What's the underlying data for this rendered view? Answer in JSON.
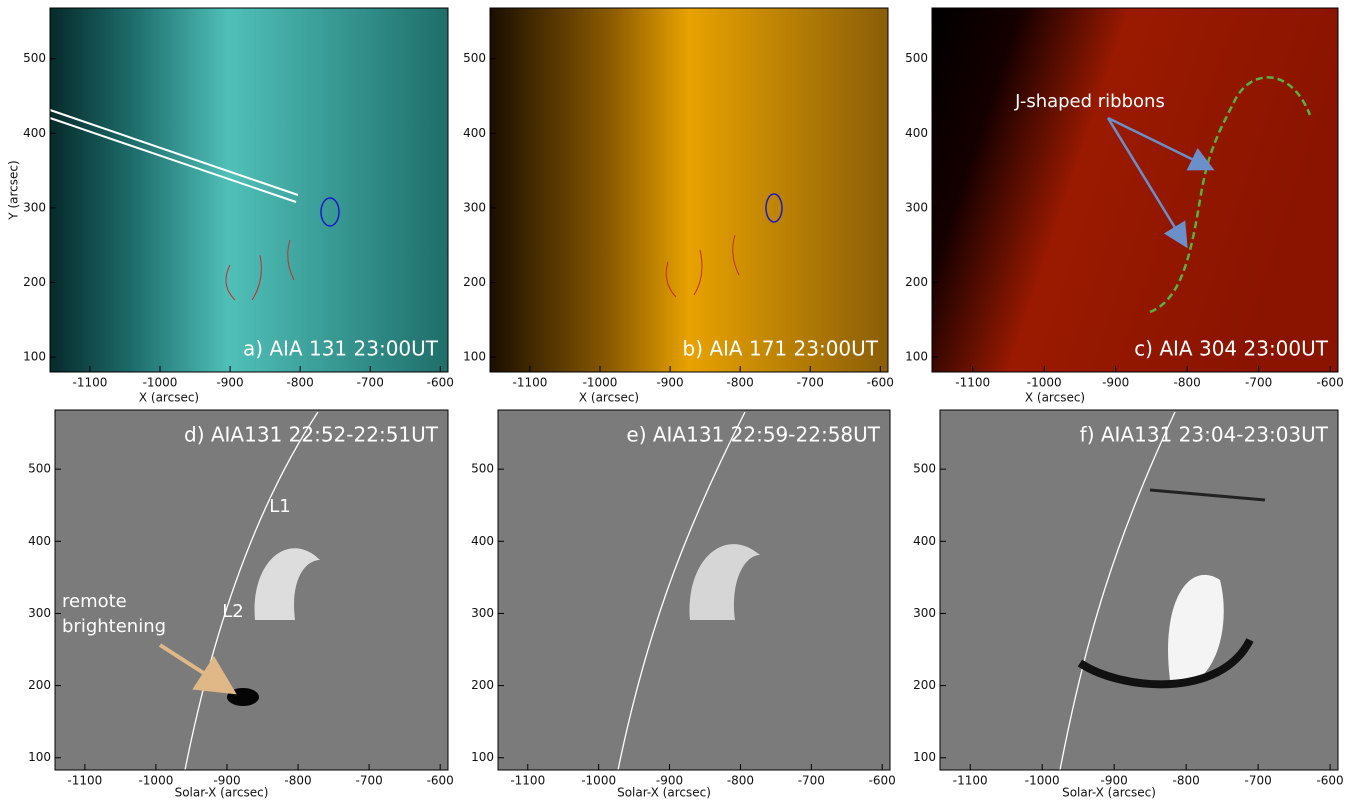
{
  "panels": [
    {
      "label": "a) AIA 131 23:00UT",
      "x_label": "X (arcsec)",
      "y_label": "Y (arcsec)",
      "xlim": [
        -1157,
        -589
      ],
      "ylim": [
        80,
        568
      ],
      "xticks": [
        -1100,
        -1000,
        -900,
        -800,
        -700,
        -600
      ],
      "yticks": [
        100,
        200,
        300,
        400,
        500
      ]
    },
    {
      "label": "b) AIA 171 23:00UT",
      "x_label": "X (arcsec)",
      "xlim": [
        -1157,
        -589
      ],
      "ylim": [
        80,
        568
      ],
      "xticks": [
        -1100,
        -1000,
        -900,
        -800,
        -700,
        -600
      ],
      "yticks": [
        100,
        200,
        300,
        400,
        500
      ]
    },
    {
      "label": "c) AIA 304 23:00UT",
      "x_label": "X (arcsec)",
      "xlim": [
        -1157,
        -589
      ],
      "ylim": [
        80,
        568
      ],
      "xticks": [
        -1100,
        -1000,
        -900,
        -800,
        -700,
        -600
      ],
      "yticks": [
        100,
        200,
        300,
        400,
        500
      ],
      "annotations": [
        "J-shaped ribbons"
      ]
    },
    {
      "label": "d) AIA131 22:52-22:51UT",
      "x_label": "Solar-X (arcsec)",
      "xlim": [
        -1142,
        -589
      ],
      "ylim": [
        83,
        582
      ],
      "xticks": [
        -1100,
        -1000,
        -900,
        -800,
        -700,
        -600
      ],
      "yticks": [
        100,
        200,
        300,
        400,
        500
      ],
      "annotations": [
        "L1",
        "L2",
        "remote",
        "brightening"
      ]
    },
    {
      "label": "e) AIA131 22:59-22:58UT",
      "x_label": "Solar-X (arcsec)",
      "xlim": [
        -1142,
        -589
      ],
      "ylim": [
        83,
        582
      ],
      "xticks": [
        -1100,
        -1000,
        -900,
        -800,
        -700,
        -600
      ],
      "yticks": [
        100,
        200,
        300,
        400,
        500
      ]
    },
    {
      "label": "f) AIA131 23:04-23:03UT",
      "x_label": "Solar-X (arcsec)",
      "xlim": [
        -1142,
        -589
      ],
      "ylim": [
        83,
        582
      ],
      "xticks": [
        -1100,
        -1000,
        -900,
        -800,
        -700,
        -600
      ],
      "yticks": [
        100,
        200,
        300,
        400,
        500
      ]
    }
  ]
}
